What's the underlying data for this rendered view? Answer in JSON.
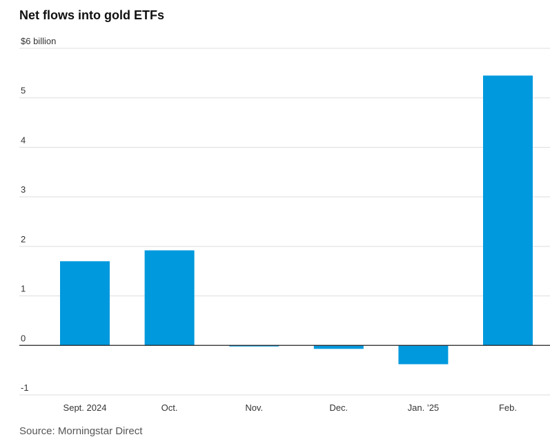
{
  "title": "Net flows into gold ETFs",
  "source": "Source: Morningstar Direct",
  "chart_data": {
    "type": "bar",
    "title": "Net flows into gold ETFs",
    "unit_label": "$6 billion",
    "categories": [
      "Sept. 2024",
      "Oct.",
      "Nov.",
      "Dec.",
      "Jan. ’25",
      "Feb."
    ],
    "values": [
      1.7,
      1.92,
      -0.02,
      -0.07,
      -0.38,
      5.45
    ],
    "ylim": [
      -1,
      6
    ],
    "yticks": [
      -1,
      0,
      1,
      2,
      3,
      4,
      5,
      6
    ],
    "ytick_labels": [
      "-1",
      "0",
      "1",
      "2",
      "3",
      "4",
      "5",
      "$6 billion"
    ],
    "grid": true,
    "bar_color": "#0099dd",
    "xlabel": "",
    "ylabel": ""
  }
}
